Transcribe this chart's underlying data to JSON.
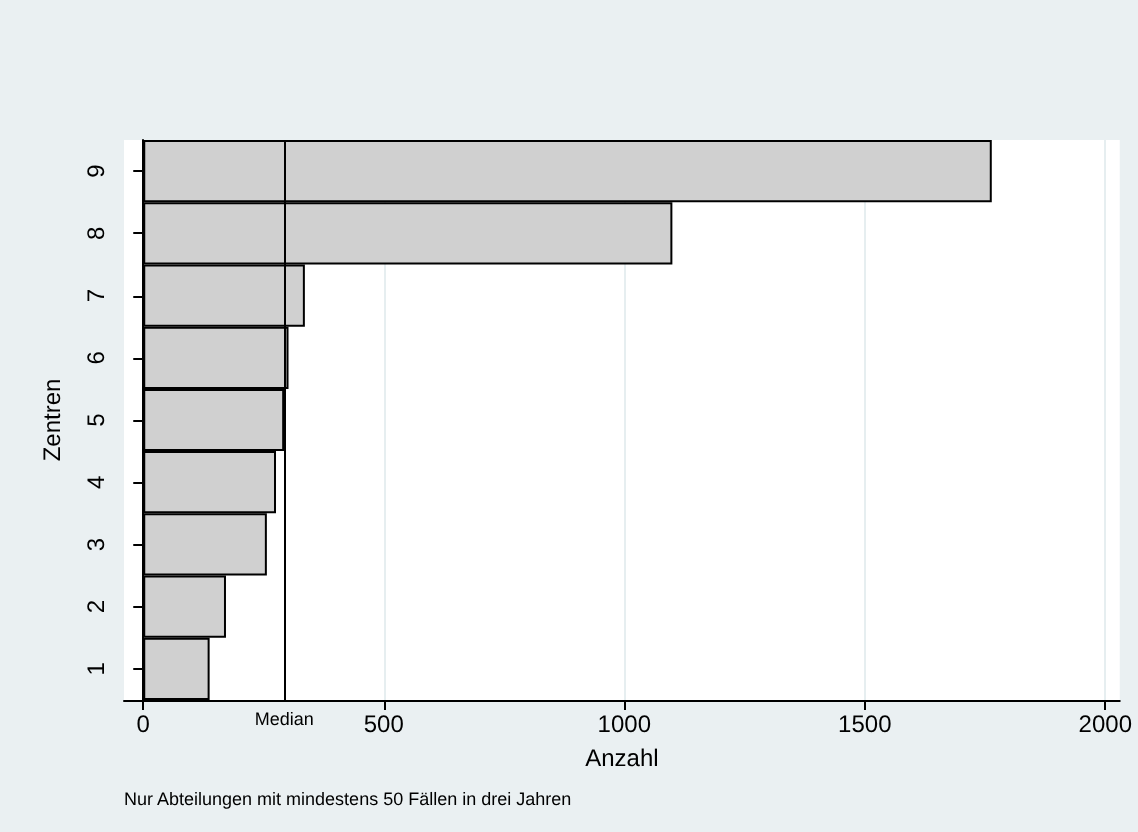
{
  "chart_data": {
    "type": "bar",
    "orientation": "horizontal",
    "categories": [
      "9",
      "8",
      "7",
      "6",
      "5",
      "4",
      "3",
      "2",
      "1"
    ],
    "values": [
      1764,
      1100,
      336,
      302,
      293,
      276,
      257,
      172,
      138
    ],
    "color": "#d0d0d0",
    "xlabel": "Anzahl",
    "ylabel": "Zentren",
    "xlim": [
      -40,
      2030
    ],
    "xticks": [
      0,
      500,
      1000,
      1500,
      2000
    ],
    "grid": "x",
    "ref_lines": [
      {
        "axis": "x",
        "value": 293,
        "label": "Median",
        "color": "#000000"
      }
    ],
    "annotations": [
      "Nur Abteilungen mit mindestens 50 Fällen in drei Jahren"
    ]
  }
}
